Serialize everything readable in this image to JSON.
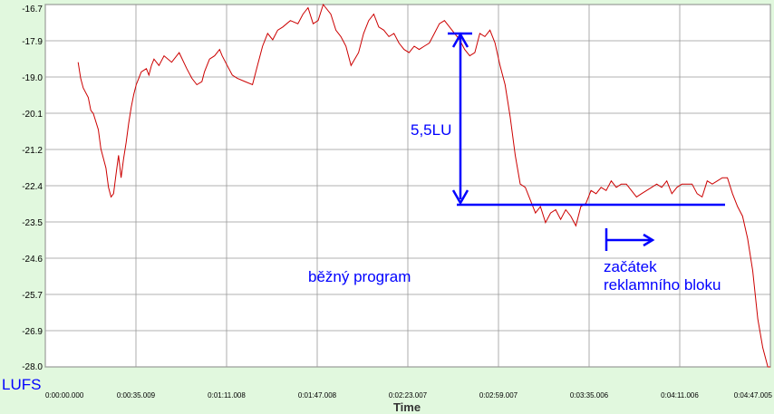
{
  "chart_data": {
    "type": "line",
    "title": "",
    "xlabel": "Time",
    "ylabel": "LUFS",
    "y_tick_labels": [
      "-16.7",
      "-17.9",
      "-19.0",
      "-20.1",
      "-21.2",
      "-22.4",
      "-23.5",
      "-24.6",
      "-25.7",
      "-26.9",
      "-28.0"
    ],
    "x_tick_labels": [
      "0:00:00.000",
      "0:00:35.009",
      "0:01:11.008",
      "0:01:47.008",
      "0:02:23.007",
      "0:02:59.007",
      "0:03:35.006",
      "0:04:11.006",
      "0:04:47.005"
    ],
    "ylim": [
      -28.0,
      -16.7
    ],
    "xlim_seconds": [
      0,
      287
    ],
    "grid": true,
    "legend": "none",
    "series": [
      {
        "color": "#cc0000",
        "x": [
          13,
          14,
          15,
          17,
          18,
          19,
          21,
          22,
          24,
          25,
          26,
          27,
          28,
          29,
          30,
          31,
          32,
          33,
          34,
          35,
          36,
          37,
          38,
          40,
          41,
          42,
          43,
          45,
          47,
          50,
          53,
          56,
          58,
          60,
          62,
          63,
          65,
          67,
          69,
          70,
          72,
          74,
          76,
          79,
          82,
          84,
          86,
          88,
          90,
          92,
          94,
          97,
          100,
          102,
          104,
          106,
          108,
          110,
          113,
          115,
          117,
          119,
          121,
          124,
          126,
          128,
          130,
          132,
          134,
          136,
          138,
          140,
          142,
          144,
          146,
          148,
          150,
          152,
          154,
          156,
          158,
          160,
          162,
          164,
          166,
          168,
          170,
          172,
          174,
          176,
          178,
          180,
          182,
          184,
          186,
          188,
          190,
          192,
          194,
          196,
          198,
          200,
          202,
          204,
          206,
          208,
          210,
          212,
          214,
          216,
          218,
          220,
          222,
          224,
          226,
          228,
          230,
          232,
          234,
          236,
          238,
          240,
          242,
          244,
          246,
          248,
          250,
          252,
          254,
          256,
          258,
          260,
          262,
          264,
          266,
          268,
          270,
          272,
          274,
          276,
          278,
          280,
          282,
          284,
          286,
          287
        ],
        "y": [
          -18.5,
          -19.0,
          -19.3,
          -19.6,
          -20.0,
          -20.1,
          -20.6,
          -21.2,
          -21.8,
          -22.4,
          -22.7,
          -22.6,
          -22.0,
          -21.4,
          -22.1,
          -21.5,
          -21.0,
          -20.4,
          -19.9,
          -19.5,
          -19.2,
          -19.0,
          -18.8,
          -18.7,
          -18.9,
          -18.6,
          -18.4,
          -18.6,
          -18.3,
          -18.5,
          -18.2,
          -18.7,
          -19.0,
          -19.2,
          -19.1,
          -18.8,
          -18.4,
          -18.3,
          -18.1,
          -18.3,
          -18.6,
          -18.9,
          -19.0,
          -19.1,
          -19.2,
          -18.6,
          -18.0,
          -17.6,
          -17.8,
          -17.5,
          -17.4,
          -17.2,
          -17.3,
          -17.0,
          -16.8,
          -17.3,
          -17.2,
          -16.7,
          -17.0,
          -17.5,
          -17.7,
          -18.0,
          -18.6,
          -18.2,
          -17.6,
          -17.2,
          -17.0,
          -17.4,
          -17.5,
          -17.7,
          -17.6,
          -17.9,
          -18.1,
          -18.2,
          -18.0,
          -18.1,
          -18.0,
          -17.9,
          -17.6,
          -17.3,
          -17.2,
          -17.4,
          -17.6,
          -17.8,
          -18.1,
          -18.3,
          -18.2,
          -17.6,
          -17.7,
          -17.5,
          -17.9,
          -18.6,
          -19.2,
          -20.2,
          -21.4,
          -22.3,
          -22.4,
          -22.8,
          -23.2,
          -23.0,
          -23.5,
          -23.2,
          -23.1,
          -23.4,
          -23.1,
          -23.3,
          -23.6,
          -23.0,
          -22.9,
          -22.5,
          -22.6,
          -22.4,
          -22.5,
          -22.2,
          -22.4,
          -22.3,
          -22.3,
          -22.5,
          -22.7,
          -22.6,
          -22.5,
          -22.4,
          -22.3,
          -22.4,
          -22.2,
          -22.6,
          -22.4,
          -22.3,
          -22.3,
          -22.3,
          -22.6,
          -22.7,
          -22.2,
          -22.3,
          -22.2,
          -22.1,
          -22.1,
          -22.6,
          -23.0,
          -23.3,
          -24.0,
          -25.0,
          -26.5,
          -27.4,
          -28.0,
          -28.0
        ]
      }
    ],
    "annotations": [
      "5,5LU",
      "běžný program",
      "začátek",
      "reklamního bloku"
    ]
  },
  "colors": {
    "background": "#e1f8de",
    "plot_background": "#ffffff",
    "grid": "#999999",
    "line": "#cc0000",
    "annotation": "#0000ff"
  }
}
